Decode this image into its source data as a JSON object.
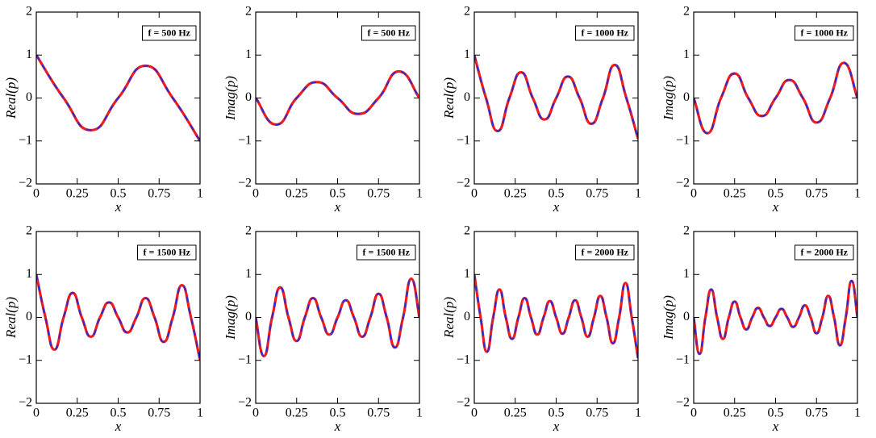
{
  "chart_data": [
    {
      "type": "line",
      "annotation": "f = 500 Hz",
      "xlabel": "x",
      "ylabel": "Real(p)",
      "x": [
        0,
        0.1667,
        0.3333,
        0.5,
        0.6667,
        0.8333,
        1
      ],
      "series": [
        {
          "color": "#ee1c1c",
          "values": [
            1,
            0,
            -0.75,
            0,
            0.75,
            0,
            -1
          ]
        },
        {
          "color": "#2b2bd9",
          "dashed": true,
          "values": [
            1,
            0,
            -0.75,
            0,
            0.75,
            0,
            -1
          ]
        }
      ],
      "xlim": [
        0,
        1
      ],
      "ylim": [
        -2,
        2
      ],
      "xticks": [
        0,
        0.25,
        0.5,
        0.75,
        1
      ],
      "yticks": [
        {
          "value": -2,
          "label": "−2"
        },
        {
          "value": -1,
          "label": "−1"
        },
        0,
        1,
        2
      ]
    },
    {
      "type": "line",
      "annotation": "f = 500 Hz",
      "xlabel": "x",
      "ylabel": "Imag(p)",
      "x": [
        0,
        0.125,
        0.25,
        0.375,
        0.5,
        0.625,
        0.75,
        0.875,
        1
      ],
      "series": [
        {
          "color": "#ee1c1c",
          "values": [
            0,
            -0.62,
            0,
            0.37,
            0,
            -0.37,
            0,
            0.62,
            0
          ]
        },
        {
          "color": "#2b2bd9",
          "dashed": true,
          "values": [
            0,
            -0.62,
            0,
            0.37,
            0,
            -0.37,
            0,
            0.62,
            0
          ]
        }
      ],
      "xlim": [
        0,
        1
      ],
      "ylim": [
        -2,
        2
      ],
      "xticks": [
        0,
        0.25,
        0.5,
        0.75,
        1
      ],
      "yticks": [
        {
          "value": -2,
          "label": "−2"
        },
        {
          "value": -1,
          "label": "−1"
        },
        0,
        1,
        2
      ]
    },
    {
      "type": "line",
      "annotation": "f = 1000 Hz",
      "xlabel": "x",
      "ylabel": "Real(p)",
      "x": [
        0,
        0.0714,
        0.1429,
        0.2143,
        0.2857,
        0.3571,
        0.4286,
        0.5,
        0.5714,
        0.6429,
        0.7143,
        0.7857,
        0.8571,
        0.9286,
        1
      ],
      "series": [
        {
          "color": "#ee1c1c",
          "values": [
            1,
            0,
            -0.77,
            0,
            0.6,
            0,
            -0.5,
            0,
            0.5,
            0,
            -0.6,
            0,
            0.77,
            0,
            -0.95
          ]
        },
        {
          "color": "#2b2bd9",
          "dashed": true,
          "values": [
            1,
            0,
            -0.77,
            0,
            0.6,
            0,
            -0.5,
            0,
            0.5,
            0,
            -0.6,
            0,
            0.77,
            0,
            -0.95
          ]
        }
      ],
      "xlim": [
        0,
        1
      ],
      "ylim": [
        -2,
        2
      ],
      "xticks": [
        0,
        0.25,
        0.5,
        0.75,
        1
      ],
      "yticks": [
        {
          "value": -2,
          "label": "−2"
        },
        {
          "value": -1,
          "label": "−1"
        },
        0,
        1,
        2
      ]
    },
    {
      "type": "line",
      "annotation": "f = 1000 Hz",
      "xlabel": "x",
      "ylabel": "Imag(p)",
      "x": [
        0,
        0.0833,
        0.1667,
        0.25,
        0.3333,
        0.4167,
        0.5,
        0.5833,
        0.6667,
        0.75,
        0.8333,
        0.9167,
        1
      ],
      "series": [
        {
          "color": "#ee1c1c",
          "values": [
            0,
            -0.82,
            0,
            0.57,
            0,
            -0.42,
            0,
            0.42,
            0,
            -0.57,
            0,
            0.82,
            0
          ]
        },
        {
          "color": "#2b2bd9",
          "dashed": true,
          "values": [
            0,
            -0.82,
            0,
            0.57,
            0,
            -0.42,
            0,
            0.42,
            0,
            -0.57,
            0,
            0.82,
            0
          ]
        }
      ],
      "xlim": [
        0,
        1
      ],
      "ylim": [
        -2,
        2
      ],
      "xticks": [
        0,
        0.25,
        0.5,
        0.75,
        1
      ],
      "yticks": [
        {
          "value": -2,
          "label": "−2"
        },
        {
          "value": -1,
          "label": "−1"
        },
        0,
        1,
        2
      ]
    },
    {
      "type": "line",
      "annotation": "f = 1500 Hz",
      "xlabel": "x",
      "ylabel": "Real(p)",
      "x": [
        0,
        0.0556,
        0.1111,
        0.1667,
        0.2222,
        0.2778,
        0.3333,
        0.3889,
        0.4444,
        0.5,
        0.5556,
        0.6111,
        0.6667,
        0.7222,
        0.7778,
        0.8333,
        0.8889,
        0.9444,
        1
      ],
      "series": [
        {
          "color": "#ee1c1c",
          "values": [
            1,
            0,
            -0.75,
            0,
            0.57,
            0,
            -0.45,
            0,
            0.35,
            0,
            -0.35,
            0,
            0.45,
            0,
            -0.57,
            0,
            0.75,
            0,
            -1
          ]
        },
        {
          "color": "#2b2bd9",
          "dashed": true,
          "values": [
            1,
            0,
            -0.75,
            0,
            0.57,
            0,
            -0.45,
            0,
            0.35,
            0,
            -0.35,
            0,
            0.45,
            0,
            -0.57,
            0,
            0.75,
            0,
            -1
          ]
        }
      ],
      "xlim": [
        0,
        1
      ],
      "ylim": [
        -2,
        2
      ],
      "xticks": [
        0,
        0.25,
        0.5,
        0.75,
        1
      ],
      "yticks": [
        {
          "value": -2,
          "label": "−2"
        },
        {
          "value": -1,
          "label": "−1"
        },
        0,
        1,
        2
      ]
    },
    {
      "type": "line",
      "annotation": "f = 1500 Hz",
      "xlabel": "x",
      "ylabel": "Imag(p)",
      "x": [
        0,
        0.05,
        0.1,
        0.15,
        0.2,
        0.25,
        0.3,
        0.35,
        0.4,
        0.45,
        0.5,
        0.55,
        0.6,
        0.65,
        0.7,
        0.75,
        0.8,
        0.85,
        0.9,
        0.95,
        1
      ],
      "series": [
        {
          "color": "#ee1c1c",
          "values": [
            0,
            -0.9,
            0,
            0.7,
            0,
            -0.55,
            0,
            0.45,
            0,
            -0.4,
            0,
            0.4,
            0,
            -0.45,
            0,
            0.55,
            0,
            -0.7,
            0,
            0.9,
            0
          ]
        },
        {
          "color": "#2b2bd9",
          "dashed": true,
          "values": [
            0,
            -0.9,
            0,
            0.7,
            0,
            -0.55,
            0,
            0.45,
            0,
            -0.4,
            0,
            0.4,
            0,
            -0.45,
            0,
            0.55,
            0,
            -0.7,
            0,
            0.9,
            0
          ]
        }
      ],
      "xlim": [
        0,
        1
      ],
      "ylim": [
        -2,
        2
      ],
      "xticks": [
        0,
        0.25,
        0.5,
        0.75,
        1
      ],
      "yticks": [
        {
          "value": -2,
          "label": "−2"
        },
        {
          "value": -1,
          "label": "−1"
        },
        0,
        1,
        2
      ]
    },
    {
      "type": "line",
      "annotation": "f = 2000 Hz",
      "xlabel": "x",
      "ylabel": "Real(p)",
      "x": [
        0,
        0.0385,
        0.0769,
        0.1154,
        0.1538,
        0.1923,
        0.2308,
        0.2692,
        0.3077,
        0.3462,
        0.3846,
        0.4231,
        0.4615,
        0.5,
        0.5385,
        0.5769,
        0.6154,
        0.6538,
        0.6923,
        0.7308,
        0.7692,
        0.8077,
        0.8462,
        0.8846,
        0.9231,
        0.9615,
        1
      ],
      "series": [
        {
          "color": "#ee1c1c",
          "values": [
            1,
            0,
            -0.8,
            0,
            0.65,
            0,
            -0.5,
            0,
            0.45,
            0,
            -0.4,
            0,
            0.38,
            0,
            -0.38,
            0,
            0.4,
            0,
            -0.45,
            0,
            0.5,
            0,
            -0.6,
            0,
            0.8,
            0,
            -0.95
          ]
        },
        {
          "color": "#2b2bd9",
          "dashed": true,
          "values": [
            1,
            0,
            -0.8,
            0,
            0.65,
            0,
            -0.5,
            0,
            0.45,
            0,
            -0.4,
            0,
            0.38,
            0,
            -0.38,
            0,
            0.4,
            0,
            -0.45,
            0,
            0.5,
            0,
            -0.6,
            0,
            0.8,
            0,
            -0.95
          ]
        }
      ],
      "xlim": [
        0,
        1
      ],
      "ylim": [
        -2,
        2
      ],
      "xticks": [
        0,
        0.25,
        0.5,
        0.75,
        1
      ],
      "yticks": [
        {
          "value": -2,
          "label": "−2"
        },
        {
          "value": -1,
          "label": "−1"
        },
        0,
        1,
        2
      ]
    },
    {
      "type": "line",
      "annotation": "f = 2000 Hz",
      "xlabel": "x",
      "ylabel": "Imag(p)",
      "x": [
        0,
        0.0357,
        0.0714,
        0.1071,
        0.1429,
        0.1786,
        0.2143,
        0.25,
        0.2857,
        0.3214,
        0.3571,
        0.3929,
        0.4286,
        0.4643,
        0.5,
        0.5357,
        0.5714,
        0.6071,
        0.6429,
        0.6786,
        0.7143,
        0.75,
        0.7857,
        0.8214,
        0.8571,
        0.8929,
        0.9286,
        0.9643,
        1
      ],
      "series": [
        {
          "color": "#ee1c1c",
          "values": [
            0,
            -0.85,
            0,
            0.65,
            0,
            -0.5,
            0,
            0.37,
            0,
            -0.28,
            0,
            0.22,
            0,
            -0.2,
            0,
            0.2,
            0,
            -0.22,
            0,
            0.28,
            0,
            -0.37,
            0,
            0.5,
            0,
            -0.65,
            0,
            0.85,
            0
          ]
        },
        {
          "color": "#2b2bd9",
          "dashed": true,
          "values": [
            0,
            -0.85,
            0,
            0.65,
            0,
            -0.5,
            0,
            0.37,
            0,
            -0.28,
            0,
            0.22,
            0,
            -0.2,
            0,
            0.2,
            0,
            -0.22,
            0,
            0.28,
            0,
            -0.37,
            0,
            0.5,
            0,
            -0.65,
            0,
            0.85,
            0
          ]
        }
      ],
      "xlim": [
        0,
        1
      ],
      "ylim": [
        -2,
        2
      ],
      "xticks": [
        0,
        0.25,
        0.5,
        0.75,
        1
      ],
      "yticks": [
        {
          "value": -2,
          "label": "−2"
        },
        {
          "value": -1,
          "label": "−1"
        },
        0,
        1,
        2
      ]
    }
  ]
}
